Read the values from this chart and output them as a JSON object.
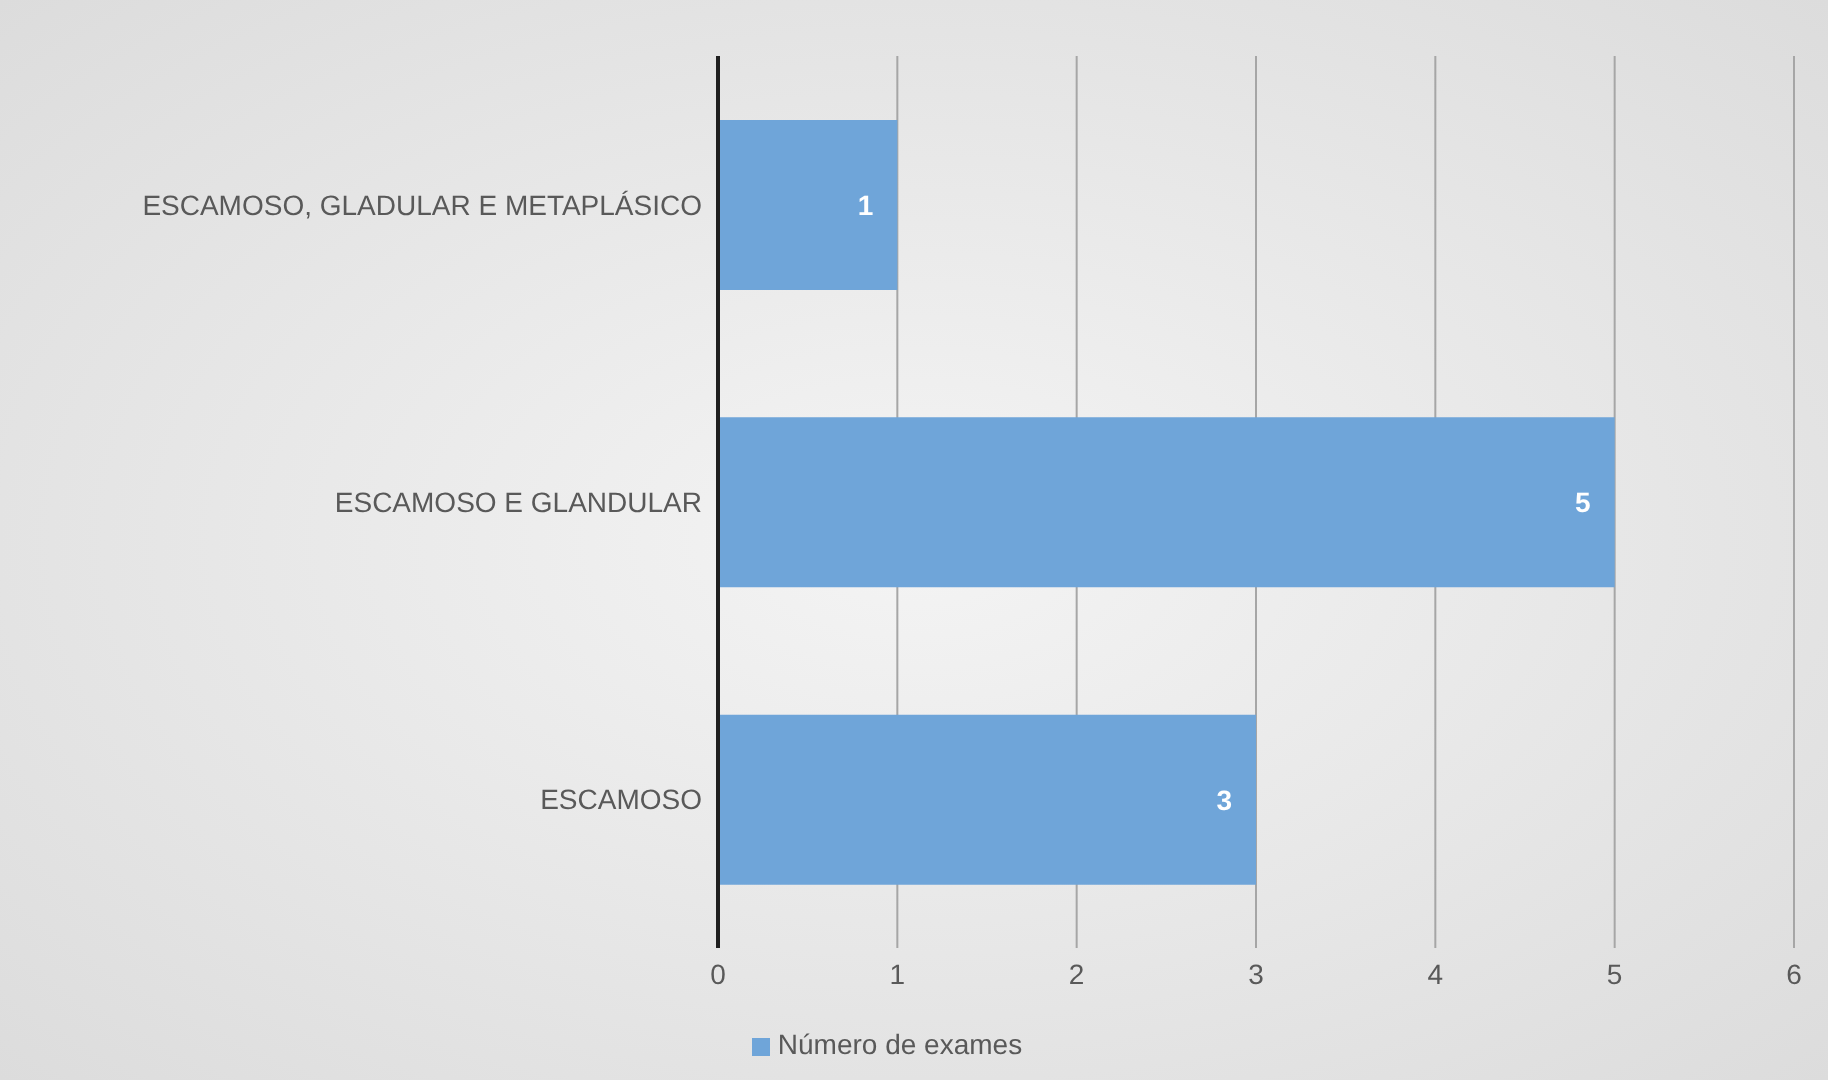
{
  "chart_data": {
    "type": "bar",
    "orientation": "horizontal",
    "categories": [
      "ESCAMOSO, GLADULAR E METAPLÁSICO",
      "ESCAMOSO E GLANDULAR",
      "ESCAMOSO"
    ],
    "series": [
      {
        "name": "Número de exames",
        "color": "#6fa5d9",
        "values": [
          1,
          5,
          3
        ]
      }
    ],
    "xlim": [
      0,
      6
    ],
    "xticks": [
      0,
      1,
      2,
      3,
      4,
      5,
      6
    ],
    "grid": "x",
    "legend": "bottom",
    "data_labels": true
  }
}
